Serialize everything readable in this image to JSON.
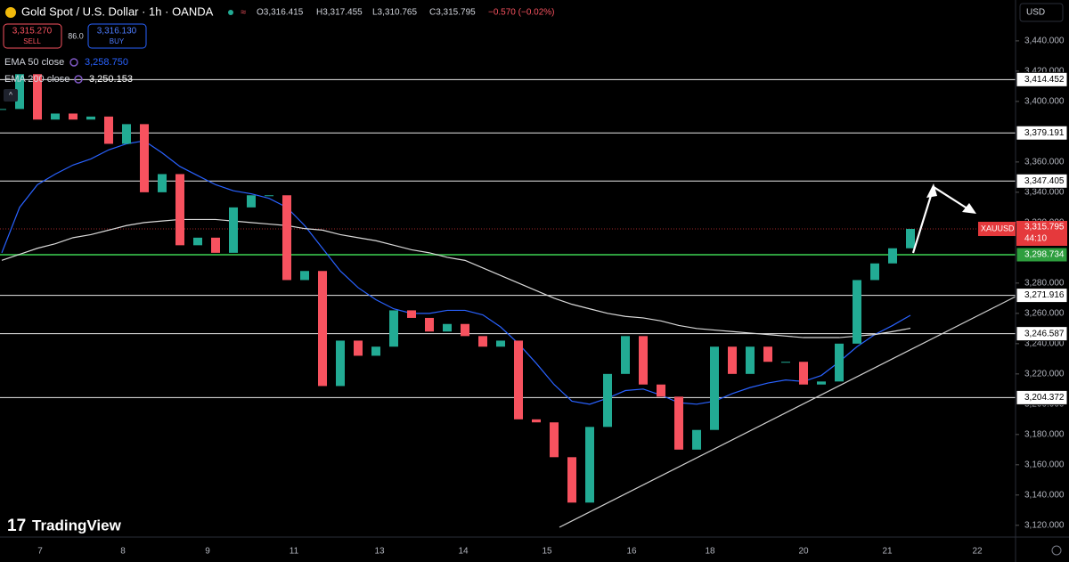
{
  "chart_data": {
    "type": "candlestick",
    "title": "Gold Spot / U.S. Dollar · 1h · OANDA",
    "ohlc": [
      "O3,316.415",
      "H3,317.455",
      "L3,310.765",
      "C3,315.795",
      "−0.570 (−0.02%)"
    ],
    "sell": {
      "price": "3,315.270",
      "label": "SELL"
    },
    "spread": "86.0",
    "buy": {
      "price": "3,316.130",
      "label": "BUY"
    },
    "currency": "USD",
    "symbol": "XAUUSD",
    "countdown": "44:10",
    "brand": "TradingView",
    "up_color": "#22ab94",
    "down_color": "#f7525f",
    "x_labels": [
      "7",
      "8",
      "9",
      "11",
      "13",
      "14",
      "15",
      "16",
      "18",
      "20",
      "21",
      "22"
    ],
    "closes": [
      3395,
      3418,
      3388,
      3392,
      3388,
      3390,
      3372,
      3385,
      3340,
      3352,
      3305,
      3310,
      3300,
      3330,
      3338,
      3338,
      3282,
      3288,
      3212,
      3242,
      3232,
      3238,
      3262,
      3257,
      3248,
      3253,
      3245,
      3238,
      3242,
      3190,
      3188,
      3165,
      3135,
      3185,
      3220,
      3245,
      3213,
      3205,
      3170,
      3183,
      3238,
      3220,
      3238,
      3228,
      3228,
      3213,
      3215,
      3240,
      3282,
      3293,
      3303,
      3315.795
    ],
    "series": [
      {
        "name": "EMA 50 close",
        "color": "#2962ff",
        "value_label": "3,258.750",
        "values": [
          3300,
          3330,
          3345,
          3352,
          3358,
          3362,
          3368,
          3372,
          3374,
          3366,
          3357,
          3351,
          3345,
          3341,
          3339,
          3336,
          3330,
          3318,
          3303,
          3288,
          3277,
          3269,
          3263,
          3260,
          3260,
          3262,
          3262,
          3259,
          3251,
          3240,
          3227,
          3213,
          3202,
          3200,
          3204,
          3209,
          3210,
          3206,
          3201,
          3200,
          3202,
          3207,
          3211,
          3214,
          3216,
          3215,
          3219,
          3228,
          3238,
          3246,
          3252,
          3258.75
        ]
      },
      {
        "name": "EMA 200 close",
        "color": "#d9d9d9",
        "value_label": "3,250.153",
        "values": [
          3295,
          3299,
          3303,
          3306,
          3310,
          3312,
          3315,
          3318,
          3320,
          3321,
          3322,
          3322,
          3322,
          3321,
          3320,
          3319,
          3318,
          3316,
          3315,
          3312,
          3310,
          3308,
          3305,
          3302,
          3300,
          3297,
          3295,
          3290,
          3285,
          3280,
          3275,
          3270,
          3266,
          3263,
          3260,
          3258,
          3257,
          3255,
          3252,
          3250,
          3249,
          3248,
          3247,
          3246,
          3245,
          3244,
          3244,
          3244,
          3245,
          3246,
          3248,
          3250.153
        ]
      }
    ],
    "levels": [
      {
        "value": 3414.452,
        "label": "3,414.452"
      },
      {
        "value": 3379.191,
        "label": "3,379.191"
      },
      {
        "value": 3347.405,
        "label": "3,347.405"
      },
      {
        "value": 3271.916,
        "label": "3,271.916"
      },
      {
        "value": 3246.587,
        "label": "3,246.587"
      },
      {
        "value": 3204.372,
        "label": "3,204.372"
      }
    ],
    "support": {
      "value": 3298.734,
      "label": "3,298.734",
      "color": "#2e9e3e"
    },
    "last": {
      "value": 3315.795,
      "label": "3,315.795",
      "color": "#e5393c"
    },
    "ylim": [
      3114,
      3467
    ],
    "yticks": [
      {
        "value": 3120,
        "label": "3,120.000"
      },
      {
        "value": 3140,
        "label": "3,140.000"
      },
      {
        "value": 3160,
        "label": "3,160.000"
      },
      {
        "value": 3180,
        "label": "3,180.000"
      },
      {
        "value": 3200,
        "label": "3,200.000"
      },
      {
        "value": 3220,
        "label": "3,220.000"
      },
      {
        "value": 3240,
        "label": "3,240.000"
      },
      {
        "value": 3260,
        "label": "3,260.000"
      },
      {
        "value": 3280,
        "label": "3,280.000"
      },
      {
        "value": 3320,
        "label": "3,320.000"
      },
      {
        "value": 3340,
        "label": "3,340.000"
      },
      {
        "value": 3360,
        "label": "3,360.000"
      },
      {
        "value": 3400,
        "label": "3,400.000"
      },
      {
        "value": 3420,
        "label": "3,420.000"
      },
      {
        "value": 3440,
        "label": "3,440.000"
      }
    ]
  }
}
